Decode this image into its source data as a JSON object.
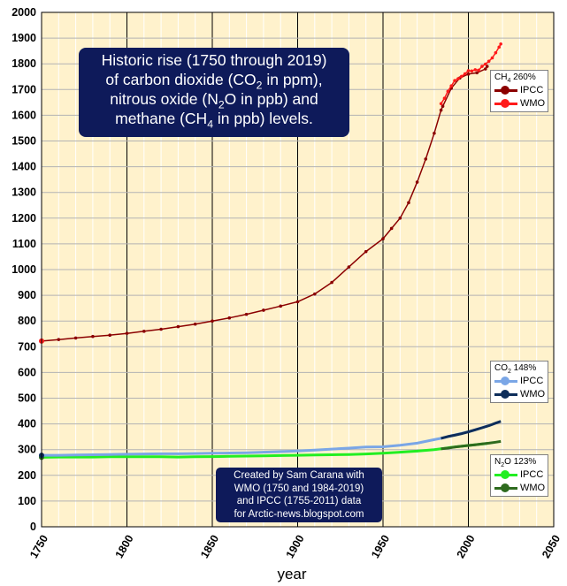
{
  "title_lines": [
    "Historic rise (1750 through 2019)",
    "of carbon dioxide (CO",
    "2",
    " in ppm),",
    "nitrous oxide (N",
    "2",
    "O in ppb) and",
    "methane (CH",
    "4",
    " in ppb) levels."
  ],
  "credit_lines": [
    "Created by Sam Carana with",
    "WMO (1750 and 1984-2019)",
    "and IPCC (1755-2011) data",
    "for Arctic-news.blogspot.com"
  ],
  "legends": {
    "ch4": {
      "gas": "CH",
      "sub": "4",
      "pct": " 260%",
      "items": [
        "IPCC",
        "WMO"
      ]
    },
    "co2": {
      "gas": "CO",
      "sub": "2",
      "pct": " 148%",
      "items": [
        "IPCC",
        "WMO"
      ]
    },
    "n2o": {
      "gas": "N",
      "sub": "2",
      "rest": "O 123%",
      "items": [
        "IPCC",
        "WMO"
      ]
    }
  },
  "colors": {
    "plot_bg": "#fff2cc",
    "ch4_ipcc": "#8b0000",
    "ch4_wmo": "#ff1a1a",
    "co2_ipcc": "#7aa6e6",
    "co2_wmo": "#0d2d5a",
    "n2o_ipcc": "#22ee22",
    "n2o_wmo": "#2e6b1e"
  },
  "chart_data": {
    "type": "line",
    "xlabel": "year",
    "ylabel": "",
    "xlim": [
      1750,
      2050
    ],
    "ylim": [
      0,
      2000
    ],
    "xticks": [
      1750,
      1800,
      1850,
      1900,
      1950,
      2000,
      2050
    ],
    "yticks": [
      0,
      100,
      200,
      300,
      400,
      500,
      600,
      700,
      800,
      900,
      1000,
      1100,
      1200,
      1300,
      1400,
      1500,
      1600,
      1700,
      1800,
      1900,
      2000
    ],
    "grid": true,
    "series": [
      {
        "name": "CH4 IPCC",
        "key": "ch4_ipcc",
        "x": [
          1750,
          1760,
          1770,
          1780,
          1790,
          1800,
          1810,
          1820,
          1830,
          1840,
          1850,
          1860,
          1870,
          1880,
          1890,
          1900,
          1910,
          1920,
          1930,
          1940,
          1950,
          1955,
          1960,
          1965,
          1970,
          1975,
          1980,
          1984,
          1985,
          1990,
          1995,
          2000,
          2005,
          2010,
          2011
        ],
        "y": [
          722,
          728,
          734,
          740,
          745,
          752,
          760,
          768,
          778,
          788,
          800,
          812,
          826,
          842,
          858,
          875,
          905,
          950,
          1010,
          1070,
          1120,
          1160,
          1200,
          1260,
          1340,
          1430,
          1530,
          1620,
          1635,
          1705,
          1745,
          1760,
          1765,
          1780,
          1790
        ]
      },
      {
        "name": "CH4 WMO",
        "key": "ch4_wmo",
        "x": [
          1750,
          1984,
          1986,
          1988,
          1990,
          1992,
          1994,
          1996,
          1998,
          2000,
          2002,
          2004,
          2006,
          2008,
          2010,
          2012,
          2014,
          2016,
          2018,
          2019
        ],
        "y": [
          722,
          1645,
          1666,
          1693,
          1714,
          1735,
          1742,
          1751,
          1761,
          1773,
          1772,
          1777,
          1775,
          1790,
          1799,
          1810,
          1823,
          1843,
          1865,
          1877
        ]
      },
      {
        "name": "CO2 IPCC",
        "key": "co2_ipcc",
        "x": [
          1750,
          1760,
          1770,
          1780,
          1790,
          1800,
          1810,
          1820,
          1830,
          1840,
          1850,
          1860,
          1870,
          1880,
          1890,
          1900,
          1910,
          1920,
          1930,
          1940,
          1950,
          1960,
          1970,
          1980,
          1984,
          1990,
          2000,
          2011
        ],
        "y": [
          278,
          278,
          279,
          280,
          281,
          282,
          283,
          284,
          284,
          285,
          286,
          287,
          288,
          290,
          292,
          295,
          298,
          302,
          306,
          310,
          311,
          317,
          325,
          339,
          344,
          354,
          369,
          391
        ]
      },
      {
        "name": "CO2 WMO",
        "key": "co2_wmo",
        "x": [
          1750,
          1984,
          1988,
          1992,
          1996,
          2000,
          2004,
          2008,
          2012,
          2016,
          2019
        ],
        "y": [
          278,
          344,
          351,
          356,
          362,
          369,
          377,
          385,
          393,
          403,
          410
        ]
      },
      {
        "name": "N2O IPCC",
        "key": "n2o_ipcc",
        "x": [
          1750,
          1760,
          1770,
          1780,
          1790,
          1800,
          1810,
          1820,
          1830,
          1840,
          1850,
          1860,
          1870,
          1880,
          1890,
          1900,
          1910,
          1920,
          1930,
          1940,
          1950,
          1960,
          1970,
          1980,
          1984,
          1990,
          2000,
          2011
        ],
        "y": [
          270,
          271,
          271,
          271,
          272,
          272,
          272,
          272,
          271,
          272,
          273,
          274,
          275,
          276,
          277,
          278,
          279,
          280,
          281,
          283,
          286,
          290,
          294,
          300,
          303,
          309,
          316,
          324
        ]
      },
      {
        "name": "N2O WMO",
        "key": "n2o_wmo",
        "x": [
          1750,
          1984,
          1988,
          1992,
          1996,
          2000,
          2004,
          2008,
          2012,
          2016,
          2019
        ],
        "y": [
          270,
          303,
          306,
          310,
          313,
          316,
          319,
          322,
          325,
          329,
          332
        ]
      }
    ]
  }
}
